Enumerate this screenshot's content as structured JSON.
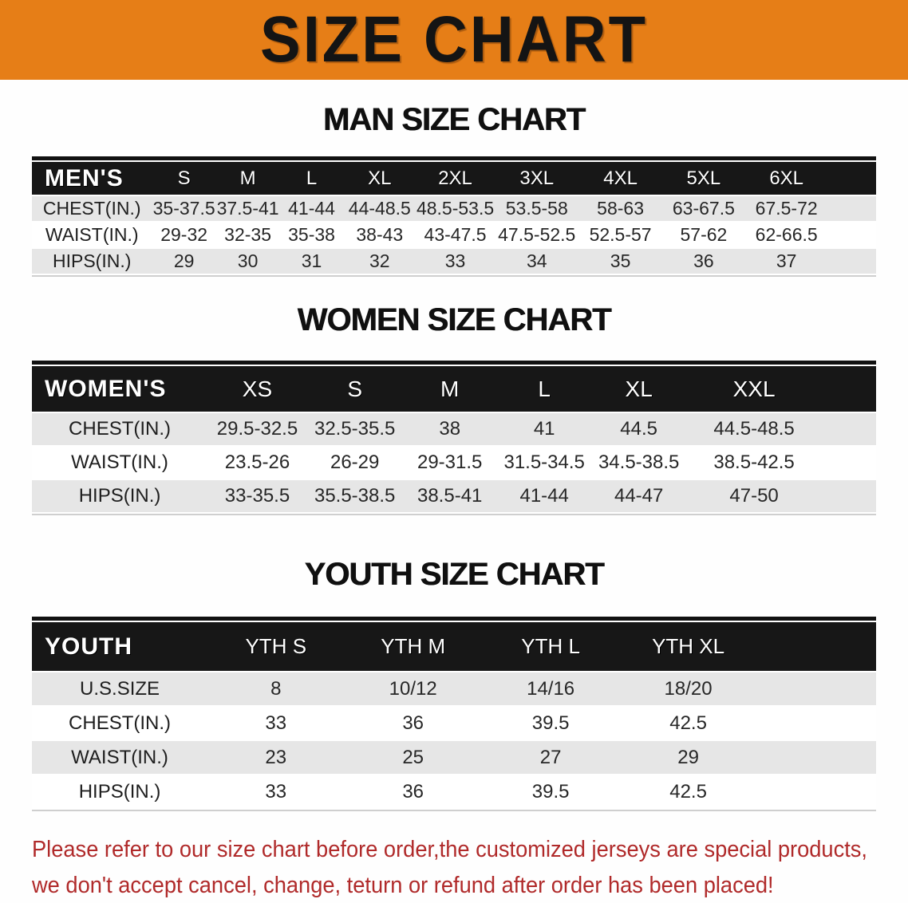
{
  "banner": {
    "title": "SIZE CHART"
  },
  "colors": {
    "banner_bg": "#e67e17",
    "header_bg": "#171717",
    "row_gray": "#e6e6e6",
    "note_red": "#b02a2a"
  },
  "sections": [
    {
      "title": "MAN SIZE CHART",
      "table": {
        "header_label": "MEN'S",
        "columns": [
          "S",
          "M",
          "L",
          "XL",
          "2XL",
          "3XL",
          "4XL",
          "5XL",
          "6XL"
        ],
        "rows": [
          {
            "label": "CHEST(IN.)",
            "values": [
              "35-37.5",
              "37.5-41",
              "41-44",
              "44-48.5",
              "48.5-53.5",
              "53.5-58",
              "58-63",
              "63-67.5",
              "67.5-72"
            ]
          },
          {
            "label": "WAIST(IN.)",
            "values": [
              "29-32",
              "32-35",
              "35-38",
              "38-43",
              "43-47.5",
              "47.5-52.5",
              "52.5-57",
              "57-62",
              "62-66.5"
            ]
          },
          {
            "label": "HIPS(IN.)",
            "values": [
              "29",
              "30",
              "31",
              "32",
              "33",
              "34",
              "35",
              "36",
              "37"
            ]
          }
        ]
      }
    },
    {
      "title": "WOMEN SIZE CHART",
      "table": {
        "header_label": "WOMEN'S",
        "columns": [
          "XS",
          "S",
          "M",
          "L",
          "XL",
          "XXL"
        ],
        "rows": [
          {
            "label": "CHEST(IN.)",
            "values": [
              "29.5-32.5",
              "32.5-35.5",
              "38",
              "41",
              "44.5",
              "44.5-48.5"
            ]
          },
          {
            "label": "WAIST(IN.)",
            "values": [
              "23.5-26",
              "26-29",
              "29-31.5",
              "31.5-34.5",
              "34.5-38.5",
              "38.5-42.5"
            ]
          },
          {
            "label": "HIPS(IN.)",
            "values": [
              "33-35.5",
              "35.5-38.5",
              "38.5-41",
              "41-44",
              "44-47",
              "47-50"
            ]
          }
        ]
      }
    },
    {
      "title": "YOUTH SIZE CHART",
      "table": {
        "header_label": "YOUTH",
        "columns": [
          "YTH S",
          "YTH M",
          "YTH L",
          "YTH XL"
        ],
        "rows": [
          {
            "label": "U.S.SIZE",
            "values": [
              "8",
              "10/12",
              "14/16",
              "18/20"
            ]
          },
          {
            "label": "CHEST(IN.)",
            "values": [
              "33",
              "36",
              "39.5",
              "42.5"
            ]
          },
          {
            "label": "WAIST(IN.)",
            "values": [
              "23",
              "25",
              "27",
              "29"
            ]
          },
          {
            "label": "HIPS(IN.)",
            "values": [
              "33",
              "36",
              "39.5",
              "42.5"
            ]
          }
        ]
      }
    }
  ],
  "note": {
    "line1": "Please refer to our size chart before order,the customized jerseys are special products,",
    "line2": "we don't accept cancel, change, teturn or refund after order has been placed!"
  }
}
